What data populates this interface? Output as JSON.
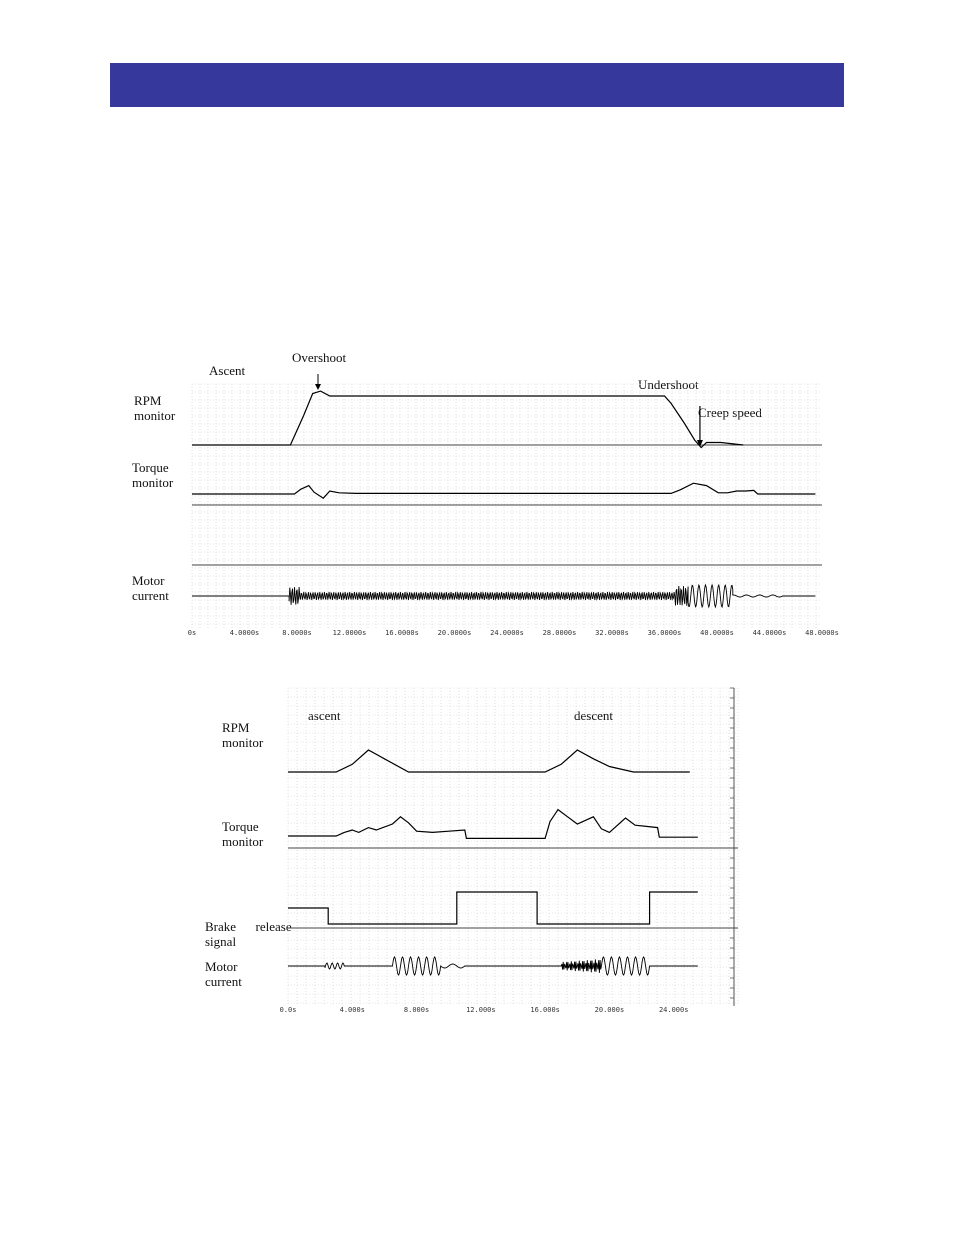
{
  "header": {
    "color": "#36399b"
  },
  "figure1": {
    "labels": {
      "ascent": "Ascent",
      "overshoot": "Overshoot",
      "undershoot": "Undershoot",
      "creep_speed": "Creep speed",
      "rpm": [
        "RPM",
        "monitor"
      ],
      "torque": [
        "Torque",
        "monitor"
      ],
      "motor": [
        "Motor",
        "current"
      ]
    }
  },
  "figure2": {
    "labels": {
      "ascent": "ascent",
      "descent": "descent",
      "rpm": [
        "RPM",
        "monitor"
      ],
      "torque": [
        "Torque",
        "monitor"
      ],
      "brake": [
        "Brake      release",
        "signal"
      ],
      "motor": [
        "Motor",
        "current"
      ]
    }
  },
  "chart_data": [
    {
      "type": "line",
      "xlim": [
        0,
        48
      ],
      "ticks": [
        "0s",
        "4.0000s",
        "8.0000s",
        "12.0000s",
        "16.0000s",
        "20.0000s",
        "24.0000s",
        "28.0000s",
        "32.0000s",
        "36.0000s",
        "40.0000s",
        "44.0000s",
        "48.0000s"
      ],
      "grid": true,
      "series": [
        {
          "name": "RPM monitor",
          "x": [
            0,
            7.5,
            8.5,
            9.2,
            9.8,
            10.5,
            11.5,
            36,
            36.5,
            37.5,
            38.3,
            38.8,
            39.2,
            40.3,
            42
          ],
          "y": [
            0,
            0,
            0.6,
            1.05,
            1.1,
            1.0,
            1.0,
            1.0,
            0.85,
            0.45,
            0.1,
            -0.05,
            0.05,
            0.05,
            0
          ]
        },
        {
          "name": "Torque monitor",
          "x": [
            0,
            7.8,
            8.3,
            8.9,
            9.3,
            10,
            10.5,
            11.2,
            12.5,
            36.5,
            37.2,
            38.2,
            39.2,
            40.1,
            40.8,
            41.5,
            42.2,
            42.8,
            43.1,
            47.5
          ],
          "y": [
            0,
            0,
            0.4,
            0.7,
            0.15,
            -0.35,
            0.25,
            0.1,
            0.05,
            0.05,
            0.35,
            0.9,
            0.7,
            0.1,
            0.1,
            0.25,
            0.25,
            0.3,
            0,
            0
          ]
        }
      ]
    },
    {
      "type": "line",
      "xlim": [
        0,
        28
      ],
      "ticks": [
        "0.0s",
        "4.000s",
        "8.000s",
        "12.000s",
        "16.000s",
        "20.000s",
        "24.000s"
      ],
      "grid": true,
      "series": [
        {
          "name": "RPM monitor",
          "x": [
            0,
            3,
            4,
            5,
            6,
            7.5,
            16,
            17,
            18,
            19,
            20,
            21.5,
            25
          ],
          "y": [
            0,
            0,
            0.35,
            1,
            0.6,
            0,
            0,
            0.35,
            1,
            0.6,
            0.25,
            0,
            0
          ]
        },
        {
          "name": "Torque monitor",
          "x": [
            0,
            3,
            3.5,
            4,
            4.4,
            5,
            5.5,
            6.5,
            7,
            7.5,
            8,
            9,
            10,
            11,
            11.1,
            16,
            16.3,
            16.8,
            17.4,
            18,
            19,
            19.5,
            20,
            21,
            21.6,
            22.3,
            23,
            23.1,
            25.5
          ],
          "y": [
            0,
            0,
            0.15,
            0.25,
            0.15,
            0.35,
            0.25,
            0.5,
            0.8,
            0.55,
            0.2,
            0.15,
            0.2,
            0.25,
            -0.1,
            -0.1,
            0.6,
            1.1,
            0.8,
            0.5,
            0.8,
            0.3,
            0.15,
            0.75,
            0.45,
            0.4,
            0.35,
            -0.05,
            -0.05
          ]
        },
        {
          "name": "Brake release signal",
          "x": [
            0,
            2.5,
            2.5,
            10.5,
            10.5,
            15.5,
            15.5,
            22.5,
            22.5,
            25.5
          ],
          "y": [
            0,
            0,
            -1,
            -1,
            1,
            1,
            -1,
            -1,
            1,
            1
          ]
        }
      ]
    }
  ]
}
